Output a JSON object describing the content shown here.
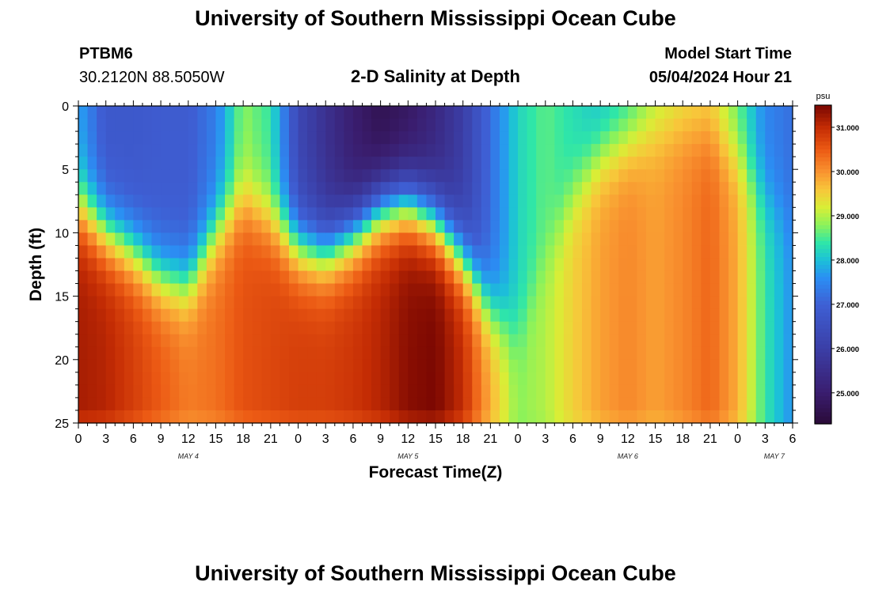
{
  "page": {
    "title": "University of Southern Mississippi Ocean Cube",
    "station_id": "PTBM6",
    "station_coords": "30.2120N  88.5050W",
    "chart_subtitle": "2-D Salinity at Depth",
    "model_start_label": "Model Start Time",
    "model_start_value": "05/04/2024 Hour 21",
    "footer_title": "University of Southern Mississippi Ocean Cube"
  },
  "chart_data": {
    "type": "heatmap",
    "title": "2-D Salinity at Depth",
    "xlabel": "Forecast Time(Z)",
    "ylabel": "Depth (ft)",
    "x_range_hours": [
      0,
      78
    ],
    "y_range_ft": [
      0,
      25
    ],
    "y_inverted": true,
    "x_tick_values": [
      0,
      3,
      6,
      9,
      12,
      15,
      18,
      21,
      24,
      27,
      30,
      33,
      36,
      39,
      42,
      45,
      48,
      51,
      54,
      57,
      60,
      63,
      66,
      69,
      72,
      75,
      78
    ],
    "x_tick_labels": [
      "0",
      "3",
      "6",
      "9",
      "12",
      "15",
      "18",
      "21",
      "0",
      "3",
      "6",
      "9",
      "12",
      "15",
      "18",
      "21",
      "0",
      "3",
      "6",
      "9",
      "12",
      "15",
      "18",
      "21",
      "0",
      "3",
      "6"
    ],
    "y_tick_values": [
      0,
      5,
      10,
      15,
      20,
      25
    ],
    "y_tick_labels": [
      "0",
      "5",
      "10",
      "15",
      "20",
      "25"
    ],
    "day_labels": [
      {
        "hour": 12,
        "label": "MAY 4"
      },
      {
        "hour": 36,
        "label": "MAY 5"
      },
      {
        "hour": 60,
        "label": "MAY 6"
      },
      {
        "hour": 76,
        "label": "MAY 7"
      }
    ],
    "colorbar": {
      "unit": "psu",
      "min": 24.3,
      "max": 31.5,
      "tick_values": [
        25,
        26,
        27,
        28,
        29,
        30,
        31
      ],
      "tick_labels": [
        "25.000",
        "26.000",
        "27.000",
        "28.000",
        "29.000",
        "30.000",
        "31.000"
      ]
    },
    "colormap_stops": [
      {
        "v": 24.3,
        "color": "#2a0a38"
      },
      {
        "v": 25.0,
        "color": "#3a1d6e"
      },
      {
        "v": 26.0,
        "color": "#3b3ea6"
      },
      {
        "v": 27.0,
        "color": "#3e5fd4"
      },
      {
        "v": 27.6,
        "color": "#2b8ef4"
      },
      {
        "v": 28.0,
        "color": "#1cc0d8"
      },
      {
        "v": 28.4,
        "color": "#2fe6a8"
      },
      {
        "v": 28.8,
        "color": "#8cf25a"
      },
      {
        "v": 29.2,
        "color": "#d9ee36"
      },
      {
        "v": 29.6,
        "color": "#f8c63a"
      },
      {
        "v": 30.0,
        "color": "#f99330"
      },
      {
        "v": 30.5,
        "color": "#ec5a14"
      },
      {
        "v": 31.0,
        "color": "#c42c04"
      },
      {
        "v": 31.5,
        "color": "#7a0702"
      }
    ],
    "halocline_depth_ft": [
      {
        "hour": 0,
        "depth": 8
      },
      {
        "hour": 3,
        "depth": 10
      },
      {
        "hour": 6,
        "depth": 11.5
      },
      {
        "hour": 9,
        "depth": 13.5
      },
      {
        "hour": 12,
        "depth": 14
      },
      {
        "hour": 15,
        "depth": 10
      },
      {
        "hour": 18,
        "depth": 7.5
      },
      {
        "hour": 21,
        "depth": 9
      },
      {
        "hour": 24,
        "depth": 11
      },
      {
        "hour": 27,
        "depth": 11.5
      },
      {
        "hour": 30,
        "depth": 10
      },
      {
        "hour": 33,
        "depth": 8
      },
      {
        "hour": 36,
        "depth": 7.5
      },
      {
        "hour": 39,
        "depth": 9
      },
      {
        "hour": 42,
        "depth": 12
      },
      {
        "hour": 45,
        "depth": 16
      },
      {
        "hour": 48,
        "depth": 18
      },
      {
        "hour": 51,
        "depth": 12
      },
      {
        "hour": 54,
        "depth": 7
      },
      {
        "hour": 57,
        "depth": 4
      },
      {
        "hour": 60,
        "depth": 3
      },
      {
        "hour": 63,
        "depth": 2
      },
      {
        "hour": 66,
        "depth": 1.5
      },
      {
        "hour": 69,
        "depth": 2
      },
      {
        "hour": 72,
        "depth": 4
      },
      {
        "hour": 75,
        "depth": 7
      },
      {
        "hour": 78,
        "depth": 9
      }
    ],
    "surface_salinity_psu": [
      {
        "hour": 0,
        "value": 27.8
      },
      {
        "hour": 3,
        "value": 26.8
      },
      {
        "hour": 6,
        "value": 26.8
      },
      {
        "hour": 9,
        "value": 26.9
      },
      {
        "hour": 12,
        "value": 26.9
      },
      {
        "hour": 15,
        "value": 27.4
      },
      {
        "hour": 18,
        "value": 28.8
      },
      {
        "hour": 21,
        "value": 28.4
      },
      {
        "hour": 24,
        "value": 26.3
      },
      {
        "hour": 27,
        "value": 25.6
      },
      {
        "hour": 30,
        "value": 25.0
      },
      {
        "hour": 33,
        "value": 24.6
      },
      {
        "hour": 36,
        "value": 24.8
      },
      {
        "hour": 39,
        "value": 25.3
      },
      {
        "hour": 42,
        "value": 26.0
      },
      {
        "hour": 45,
        "value": 27.2
      },
      {
        "hour": 48,
        "value": 28.2
      },
      {
        "hour": 51,
        "value": 28.6
      },
      {
        "hour": 54,
        "value": 28.3
      },
      {
        "hour": 57,
        "value": 28.0
      },
      {
        "hour": 60,
        "value": 28.3
      },
      {
        "hour": 63,
        "value": 28.9
      },
      {
        "hour": 66,
        "value": 29.2
      },
      {
        "hour": 69,
        "value": 29.4
      },
      {
        "hour": 72,
        "value": 28.6
      },
      {
        "hour": 75,
        "value": 27.5
      },
      {
        "hour": 78,
        "value": 27.2
      }
    ],
    "bottom_salinity_psu": [
      {
        "hour": 0,
        "value": 31.2
      },
      {
        "hour": 3,
        "value": 31.1
      },
      {
        "hour": 6,
        "value": 30.8
      },
      {
        "hour": 9,
        "value": 30.5
      },
      {
        "hour": 12,
        "value": 30.2
      },
      {
        "hour": 15,
        "value": 30.3
      },
      {
        "hour": 18,
        "value": 30.6
      },
      {
        "hour": 21,
        "value": 30.7
      },
      {
        "hour": 24,
        "value": 30.8
      },
      {
        "hour": 27,
        "value": 30.8
      },
      {
        "hour": 30,
        "value": 30.9
      },
      {
        "hour": 33,
        "value": 31.1
      },
      {
        "hour": 36,
        "value": 31.4
      },
      {
        "hour": 39,
        "value": 31.5
      },
      {
        "hour": 42,
        "value": 31.0
      },
      {
        "hour": 45,
        "value": 29.8
      },
      {
        "hour": 48,
        "value": 28.8
      },
      {
        "hour": 51,
        "value": 29.0
      },
      {
        "hour": 54,
        "value": 29.5
      },
      {
        "hour": 57,
        "value": 29.9
      },
      {
        "hour": 60,
        "value": 30.1
      },
      {
        "hour": 63,
        "value": 29.9
      },
      {
        "hour": 66,
        "value": 30.1
      },
      {
        "hour": 69,
        "value": 30.4
      },
      {
        "hour": 72,
        "value": 29.8
      },
      {
        "hour": 75,
        "value": 28.4
      },
      {
        "hour": 78,
        "value": 27.6
      }
    ]
  }
}
